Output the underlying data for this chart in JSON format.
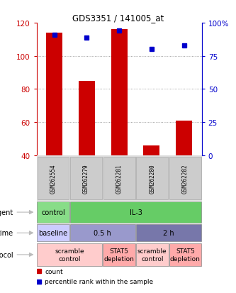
{
  "title": "GDS3351 / 141005_at",
  "samples": [
    "GSM262554",
    "GSM262279",
    "GSM262281",
    "GSM262280",
    "GSM262282"
  ],
  "bar_values": [
    114,
    85,
    116,
    46,
    61
  ],
  "bar_bottom": 40,
  "percentile_values": [
    91,
    89,
    94,
    80,
    83
  ],
  "ylim": [
    40,
    120
  ],
  "yticks_left": [
    40,
    60,
    80,
    100,
    120
  ],
  "yticks_right": [
    0,
    25,
    50,
    75,
    100
  ],
  "bar_color": "#cc0000",
  "dot_color": "#0000cc",
  "background_color": "#ffffff",
  "grid_color": "#888888",
  "agent_row": {
    "cells": [
      {
        "label": "control",
        "span": 1,
        "color": "#88dd88"
      },
      {
        "label": "IL-3",
        "span": 4,
        "color": "#66cc66"
      }
    ]
  },
  "time_row": {
    "cells": [
      {
        "label": "baseline",
        "span": 1,
        "color": "#ccccff"
      },
      {
        "label": "0.5 h",
        "span": 2,
        "color": "#9999cc"
      },
      {
        "label": "2 h",
        "span": 2,
        "color": "#7777aa"
      }
    ]
  },
  "protocol_row": {
    "cells": [
      {
        "label": "scramble\ncontrol",
        "span": 2,
        "color": "#ffcccc"
      },
      {
        "label": "STAT5\ndepletion",
        "span": 1,
        "color": "#ffaaaa"
      },
      {
        "label": "scramble\ncontrol",
        "span": 1,
        "color": "#ffcccc"
      },
      {
        "label": "STAT5\ndepletion",
        "span": 1,
        "color": "#ffaaaa"
      }
    ]
  },
  "legend_items": [
    {
      "color": "#cc0000",
      "label": "count"
    },
    {
      "color": "#0000cc",
      "label": "percentile rank within the sample"
    }
  ]
}
